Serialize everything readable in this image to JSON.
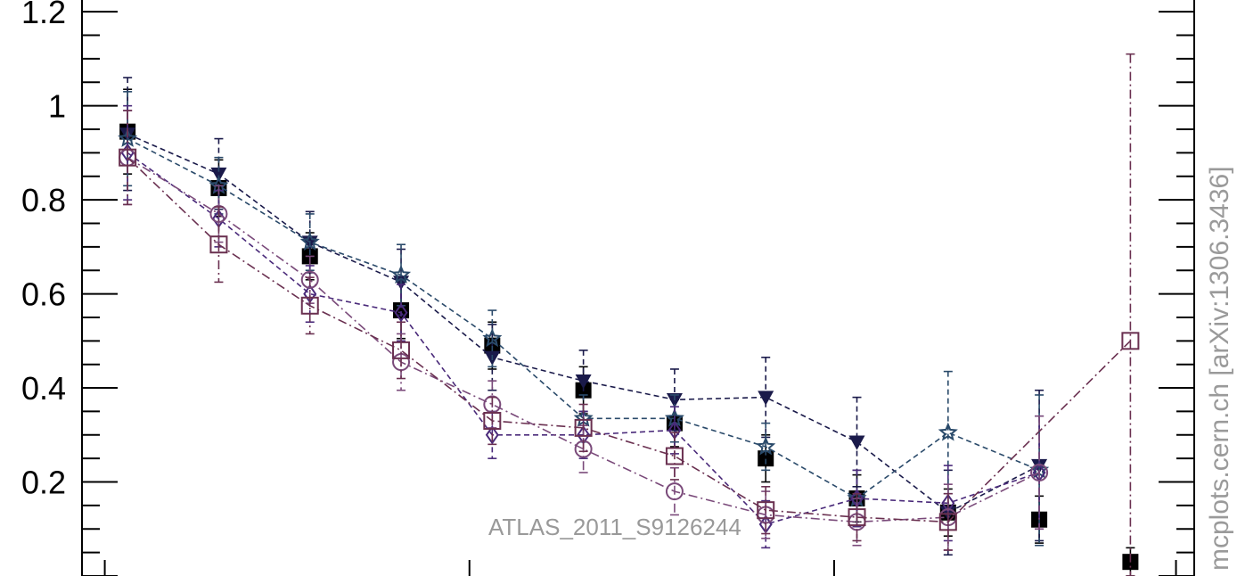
{
  "chart_data": {
    "type": "scatter",
    "xlim": [
      0,
      12.2
    ],
    "ylim": [
      0.0,
      1.225
    ],
    "y_ticks": [
      {
        "value": 0.2,
        "label": "0.2"
      },
      {
        "value": 0.4,
        "label": "0.4"
      },
      {
        "value": 0.6,
        "label": "0.6"
      },
      {
        "value": 0.8,
        "label": "0.8"
      },
      {
        "value": 1.0,
        "label": "1"
      },
      {
        "value": 1.2,
        "label": "1.2"
      }
    ],
    "watermark": "ATLAS_2011_S9126244",
    "side_label": "mcplots.cern.ch [arXiv:1306.3436]",
    "grid": false,
    "series": [
      {
        "marker": "filled-square",
        "color": "#000000",
        "line": "none",
        "x": [
          0.5,
          1.5,
          2.5,
          3.5,
          4.5,
          5.5,
          6.5,
          7.5,
          8.5,
          9.5,
          10.5,
          11.5
        ],
        "y": [
          0.945,
          0.825,
          0.68,
          0.565,
          0.49,
          0.395,
          0.325,
          0.25,
          0.165,
          0.135,
          0.12,
          0.03
        ],
        "err": [
          0.09,
          0.06,
          0.05,
          0.06,
          0.05,
          0.05,
          0.05,
          0.05,
          0.05,
          0.05,
          0.05,
          0.03
        ]
      },
      {
        "marker": "filled-triangle-down",
        "color": "#1a1a4a",
        "line": "dashed",
        "x": [
          0.5,
          1.5,
          2.5,
          3.5,
          4.5,
          5.5,
          6.5,
          7.5,
          8.5,
          9.5,
          10.5
        ],
        "y": [
          0.94,
          0.855,
          0.71,
          0.625,
          0.465,
          0.415,
          0.375,
          0.38,
          0.285,
          0.135,
          0.235
        ],
        "err": [
          0.12,
          0.075,
          0.065,
          0.07,
          0.07,
          0.065,
          0.065,
          0.085,
          0.095,
          0.09,
          0.16
        ]
      },
      {
        "marker": "open-star",
        "color": "#2a4a6a",
        "line": "dashed",
        "x": [
          0.5,
          1.5,
          2.5,
          3.5,
          4.5,
          5.5,
          6.5,
          7.5,
          8.5,
          9.5,
          10.5
        ],
        "y": [
          0.93,
          0.83,
          0.71,
          0.64,
          0.505,
          0.335,
          0.335,
          0.275,
          0.165,
          0.305,
          0.225
        ],
        "err": [
          0.1,
          0.06,
          0.06,
          0.065,
          0.06,
          0.05,
          0.05,
          0.05,
          0.06,
          0.13,
          0.16
        ]
      },
      {
        "marker": "open-diamond",
        "color": "#4a2a7a",
        "line": "dashed",
        "x": [
          0.5,
          1.5,
          2.5,
          3.5,
          4.5,
          5.5,
          6.5,
          7.5,
          8.5,
          9.5,
          10.5
        ],
        "y": [
          0.9,
          0.76,
          0.6,
          0.56,
          0.3,
          0.3,
          0.31,
          0.11,
          0.165,
          0.155,
          0.22
        ],
        "err": [
          0.1,
          0.06,
          0.06,
          0.06,
          0.05,
          0.05,
          0.05,
          0.05,
          0.06,
          0.08,
          0.12
        ]
      },
      {
        "marker": "open-circle",
        "color": "#7a4a7a",
        "line": "dashdot",
        "x": [
          0.5,
          1.5,
          2.5,
          3.5,
          4.5,
          5.5,
          6.5,
          7.5,
          8.5,
          9.5,
          10.5
        ],
        "y": [
          0.89,
          0.77,
          0.63,
          0.455,
          0.365,
          0.27,
          0.18,
          0.13,
          0.115,
          0.125,
          0.22
        ],
        "err": [
          0.1,
          0.06,
          0.05,
          0.06,
          0.05,
          0.05,
          0.05,
          0.05,
          0.05,
          0.07,
          0.12
        ]
      },
      {
        "marker": "open-square",
        "color": "#6a3050",
        "line": "dashdot",
        "x": [
          0.5,
          1.5,
          2.5,
          3.5,
          4.5,
          5.5,
          6.5,
          7.5,
          8.5,
          9.5,
          11.5
        ],
        "y": [
          0.89,
          0.705,
          0.575,
          0.48,
          0.33,
          0.315,
          0.255,
          0.14,
          0.125,
          0.115,
          0.5
        ],
        "err": [
          0.1,
          0.08,
          0.06,
          0.06,
          0.05,
          0.05,
          0.05,
          0.05,
          0.05,
          0.06,
          0.61
        ]
      }
    ]
  }
}
